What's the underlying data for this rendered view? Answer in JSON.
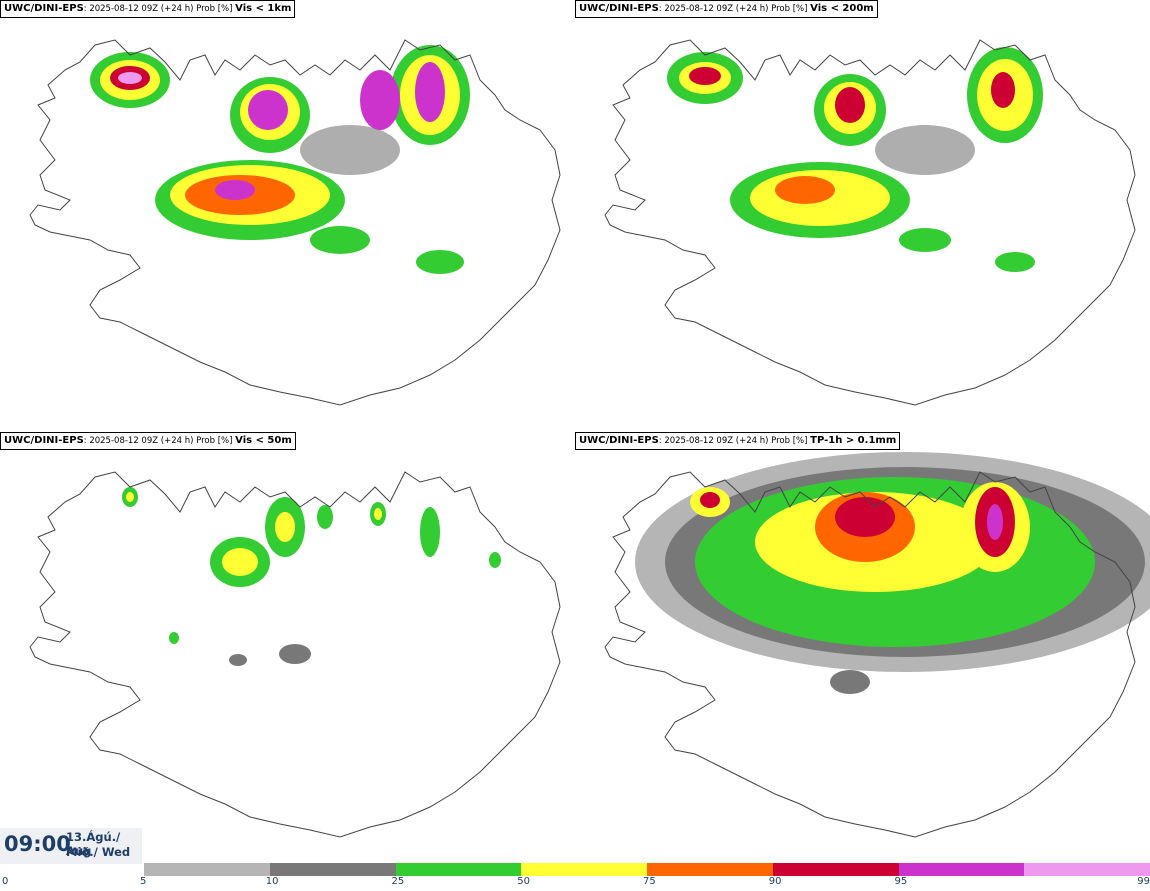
{
  "panels": [
    {
      "source": "UWC/DINI-EPS",
      "meta": ": 2025-08-12 09Z (+24 h) Prob [%] ",
      "variable": "Vis < 1km"
    },
    {
      "source": "UWC/DINI-EPS",
      "meta": ": 2025-08-12 09Z (+24 h) Prob [%] ",
      "variable": "Vis < 200m"
    },
    {
      "source": "UWC/DINI-EPS",
      "meta": ": 2025-08-12 09Z (+24 h) Prob [%] ",
      "variable": "Vis < 50m"
    },
    {
      "source": "UWC/DINI-EPS",
      "meta": ": 2025-08-12 09Z (+24 h) Prob [%] ",
      "variable": "TP-1h > 0.1mm"
    }
  ],
  "time": {
    "clock": "09:00",
    "date": "13.Ágú./ Aug",
    "weekday": "Mið./ Wed"
  },
  "legend": {
    "ticks": [
      "0",
      "5",
      "10",
      "25",
      "50",
      "75",
      "90",
      "95",
      "99"
    ],
    "colors": [
      "#b5b5b5",
      "#787878",
      "#33cc33",
      "#ffff33",
      "#ff6600",
      "#cc0033",
      "#cc33cc",
      "#ee99ee"
    ]
  }
}
